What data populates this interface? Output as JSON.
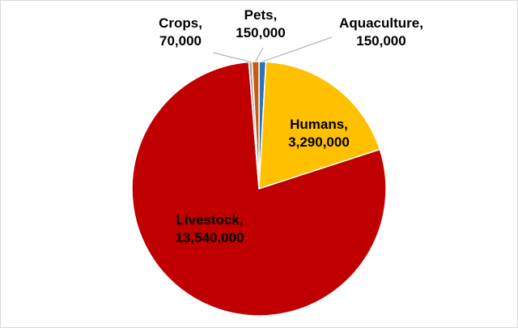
{
  "chart_data": {
    "type": "pie",
    "title": "",
    "slices": [
      {
        "label": "Aquaculture",
        "value": 150000,
        "display": "150,000",
        "color": "#2f75b6"
      },
      {
        "label": "Humans",
        "value": 3290000,
        "display": "3,290,000",
        "color": "#ffc000"
      },
      {
        "label": "Livestock",
        "value": 13540000,
        "display": "13,540,000",
        "color": "#c00000"
      },
      {
        "label": "Crops",
        "value": 70000,
        "display": "70,000",
        "color": "#a5a5a5"
      },
      {
        "label": "Pets",
        "value": 150000,
        "display": "150,000",
        "color": "#c55a11"
      }
    ],
    "legend": "none",
    "data_labels": "category name and value"
  }
}
